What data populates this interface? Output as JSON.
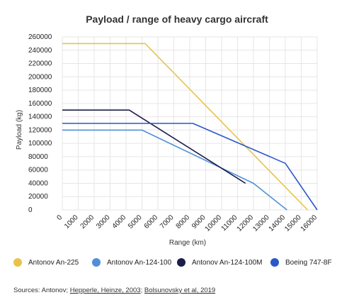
{
  "chart_data": {
    "type": "line",
    "title": "Payload / range of heavy cargo aircraft",
    "xlabel": "Range (km)",
    "ylabel": "Payload (kg)",
    "xlim": [
      0,
      16000
    ],
    "ylim": [
      0,
      260000
    ],
    "x_ticks": [
      0,
      1000,
      2000,
      3000,
      4000,
      5000,
      6000,
      7000,
      8000,
      9000,
      10000,
      11000,
      12000,
      13000,
      14000,
      15000,
      16000
    ],
    "y_ticks": [
      0,
      20000,
      40000,
      60000,
      80000,
      100000,
      120000,
      140000,
      160000,
      180000,
      200000,
      220000,
      240000,
      260000
    ],
    "grid": true,
    "legend_position": "bottom",
    "series": [
      {
        "name": "Antonov An-225",
        "color": "#e8c34a",
        "x": [
          0,
          5200,
          15400
        ],
        "y": [
          250000,
          250000,
          0
        ]
      },
      {
        "name": "Antonov An-124-100",
        "color": "#4f8fd8",
        "x": [
          0,
          5000,
          12000,
          14100
        ],
        "y": [
          120000,
          120000,
          40000,
          0
        ]
      },
      {
        "name": "Antonov An-124-100M",
        "color": "#1b1d4a",
        "x": [
          0,
          4200,
          11500
        ],
        "y": [
          150000,
          150000,
          40000
        ]
      },
      {
        "name": "Boeing 747-8F",
        "color": "#2a57c9",
        "x": [
          0,
          8200,
          14000,
          16000
        ],
        "y": [
          130000,
          130000,
          70000,
          0
        ]
      }
    ]
  },
  "source": {
    "prefix": "Sources: Antonov; ",
    "link1": "Hepperle, Heinze, 2003",
    "sep": "; ",
    "link2": "Bolsunovsky et al, 2019"
  }
}
